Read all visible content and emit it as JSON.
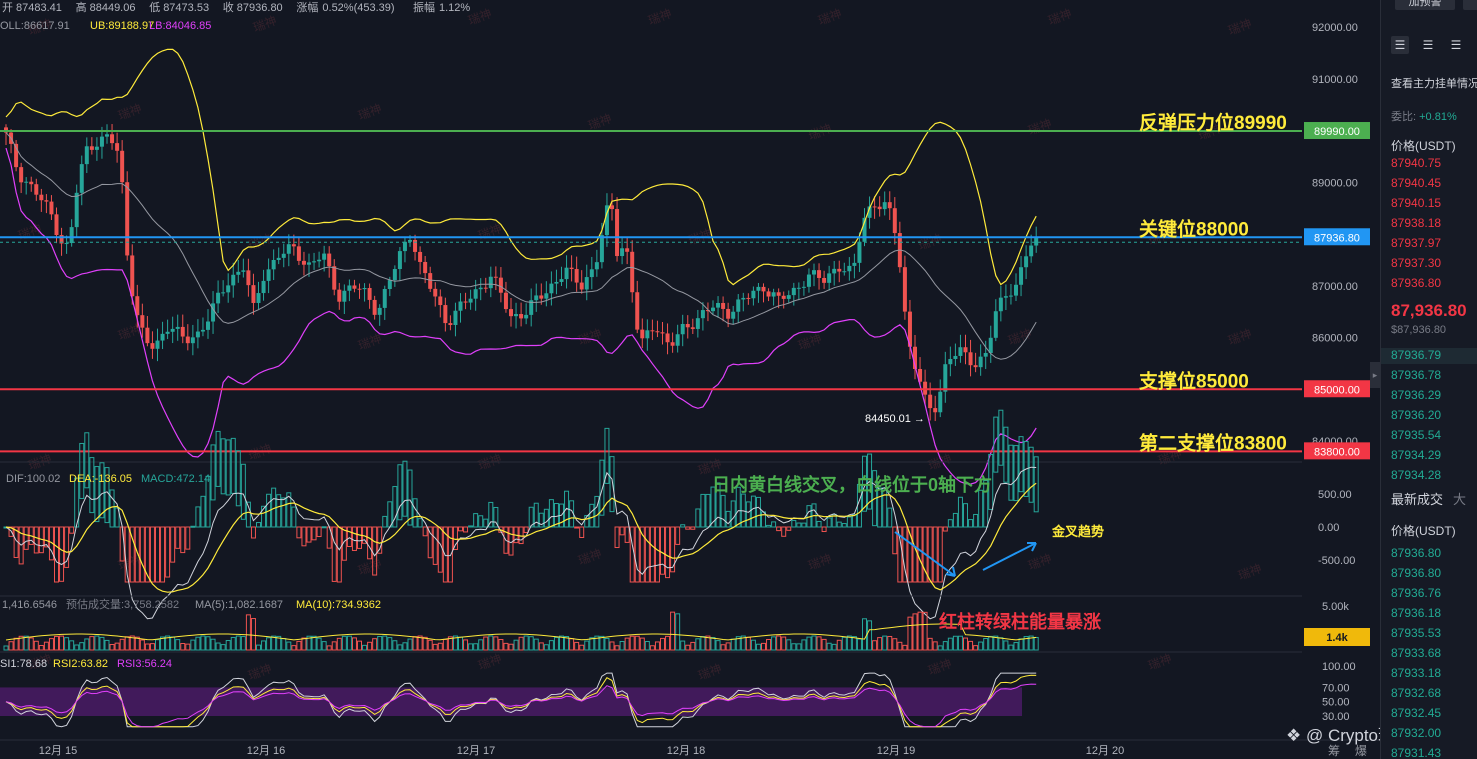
{
  "header": {
    "ohlc_line": [
      {
        "label": "开",
        "value": "87483.41"
      },
      {
        "label": "高",
        "value": "88449.06"
      },
      {
        "label": "低",
        "value": "87473.53"
      },
      {
        "label": "收",
        "value": "87936.80"
      },
      {
        "label": "涨幅",
        "value": "0.52%(453.39)"
      },
      {
        "label": "振幅",
        "value": "1.12%"
      }
    ],
    "boll_line": {
      "boll": "OLL:86617.91",
      "ub": "UB:89188.97",
      "lb": "LB:84046.85"
    }
  },
  "chart_data": {
    "type": "candlestick",
    "y_axis_ticks": [
      "92000.00",
      "91000.00",
      "90000.00",
      "89000.00",
      "88000.00",
      "87000.00",
      "86000.00",
      "85000.00",
      "84000.00"
    ],
    "ylim": [
      83800,
      92250
    ],
    "x_ticks": [
      "12月 15",
      "12月 16",
      "12月 17",
      "12月 18",
      "12月 19",
      "12月 20"
    ],
    "levels": [
      {
        "value": 89990,
        "label": "反弹压力位89990",
        "tag": "89990.00",
        "color": "#4caf50"
      },
      {
        "value": 87936.8,
        "label": "关键位88000",
        "tag": "87936.80",
        "color": "#2196f3"
      },
      {
        "value": 85000,
        "label": "支撑位85000",
        "tag": "85000.00",
        "color": "#f23645"
      },
      {
        "value": 83800,
        "label": "第二支撑位83800",
        "tag": "83800.00",
        "color": "#f23645"
      }
    ],
    "low_annotation": "84450.01",
    "macd": {
      "header": {
        "dif": "DIF:100.02",
        "dea": "DEA:-136.05",
        "macd": "MACD:472.14"
      },
      "ticks": [
        "500.00",
        "0.00",
        "-500.00"
      ],
      "annotation": "日内黄白线交叉，白线位于0轴下方",
      "cross_label": "金叉趋势"
    },
    "volume": {
      "header": {
        "vol": "1,416.6546",
        "est": "预估成交量:3,758.2582",
        "ma5": "MA(5):1,082.1687",
        "ma10": "MA(10):734.9362"
      },
      "ticks": [
        "5.00k"
      ],
      "tag": "1.4k",
      "annotation": "红柱转绿柱能量暴涨"
    },
    "rsi": {
      "header": {
        "rsi1": "SI1:78.68",
        "rsi2": "RSI2:63.82",
        "rsi3": "RSI3:56.24"
      },
      "ticks": [
        "100.00",
        "70.00",
        "50.00",
        "30.00"
      ]
    },
    "watermark": "瑞神",
    "brand": "@ Crypto瑞神",
    "bottom_right": [
      "筹",
      "爆"
    ]
  },
  "panel": {
    "alert_btn": "加预警",
    "subtitle": "查看主力挂单情况",
    "ratio_label": "委比:",
    "ratio_value": "+0.81%",
    "price_header": "价格(USDT)",
    "asks": [
      "87940.75",
      "87940.45",
      "87940.15",
      "87938.18",
      "87937.97",
      "87937.30",
      "87936.80"
    ],
    "last_price": "87,936.80",
    "last_sub": "$87,936.80",
    "bids": [
      "87936.79",
      "87936.78",
      "87936.29",
      "87936.20",
      "87935.54",
      "87934.29",
      "87934.28"
    ],
    "trades_title": "最新成交",
    "trades_tab2": "大",
    "trades_header": "价格(USDT)",
    "trades": [
      "87936.80",
      "87936.80",
      "87936.76",
      "87936.18",
      "87935.53",
      "87933.68",
      "87933.18",
      "87932.68",
      "87932.45",
      "87932.00",
      "87931.43"
    ]
  }
}
